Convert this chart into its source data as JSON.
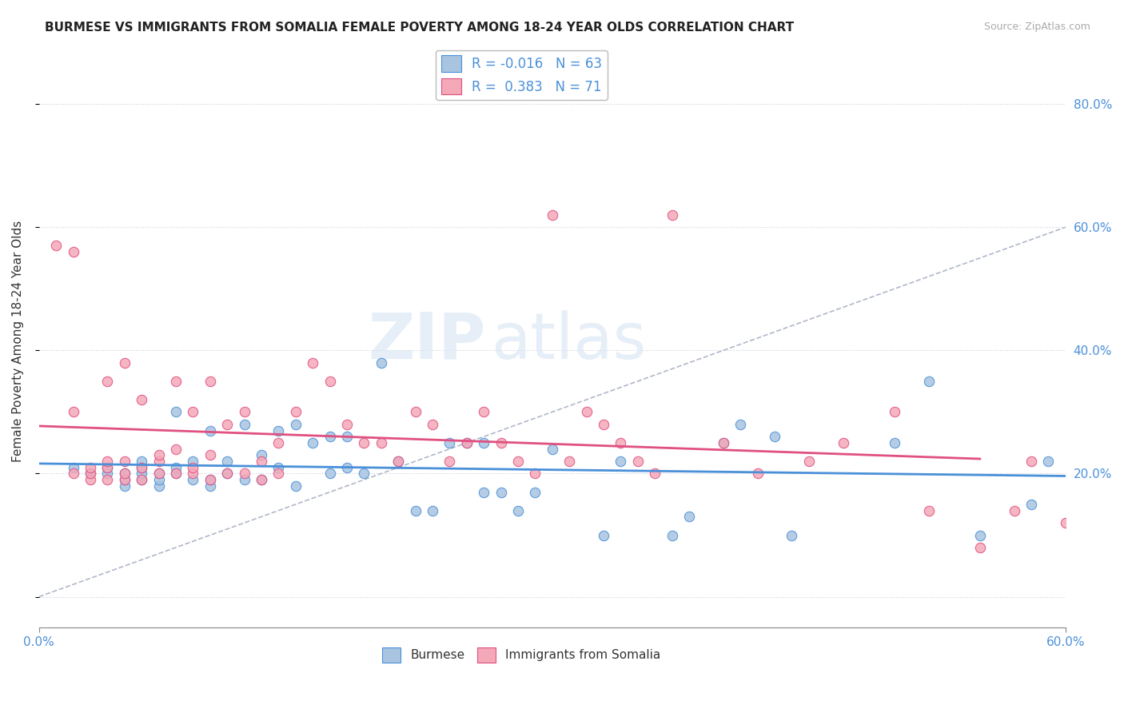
{
  "title": "BURMESE VS IMMIGRANTS FROM SOMALIA FEMALE POVERTY AMONG 18-24 YEAR OLDS CORRELATION CHART",
  "source": "Source: ZipAtlas.com",
  "ylabel": "Female Poverty Among 18-24 Year Olds",
  "yticks": [
    0.0,
    0.2,
    0.4,
    0.6,
    0.8
  ],
  "ytick_labels": [
    "",
    "20.0%",
    "40.0%",
    "60.0%",
    "80.0%"
  ],
  "xlim": [
    0.0,
    0.6
  ],
  "ylim": [
    -0.05,
    0.88
  ],
  "r_burmese": "-0.016",
  "n_burmese": "63",
  "r_somalia": "0.383",
  "n_somalia": "71",
  "color_burmese": "#a8c4e0",
  "color_somalia": "#f4a8b8",
  "color_burmese_line": "#4a90d9",
  "color_somalia_line": "#e05080",
  "color_ref_line": "#b0b8c8",
  "legend_label_burmese": "Burmese",
  "legend_label_somalia": "Immigrants from Somalia",
  "watermark_zip": "ZIP",
  "watermark_atlas": "atlas",
  "burmese_x": [
    0.02,
    0.03,
    0.04,
    0.04,
    0.05,
    0.05,
    0.05,
    0.06,
    0.06,
    0.06,
    0.06,
    0.07,
    0.07,
    0.07,
    0.08,
    0.08,
    0.08,
    0.09,
    0.09,
    0.1,
    0.1,
    0.1,
    0.11,
    0.11,
    0.12,
    0.12,
    0.13,
    0.13,
    0.14,
    0.14,
    0.15,
    0.15,
    0.16,
    0.17,
    0.17,
    0.18,
    0.18,
    0.19,
    0.2,
    0.21,
    0.22,
    0.23,
    0.24,
    0.25,
    0.26,
    0.26,
    0.27,
    0.28,
    0.29,
    0.3,
    0.33,
    0.34,
    0.37,
    0.38,
    0.4,
    0.41,
    0.43,
    0.44,
    0.5,
    0.52,
    0.55,
    0.58,
    0.59
  ],
  "burmese_y": [
    0.21,
    0.2,
    0.2,
    0.21,
    0.18,
    0.19,
    0.2,
    0.19,
    0.2,
    0.21,
    0.22,
    0.18,
    0.19,
    0.2,
    0.2,
    0.21,
    0.3,
    0.19,
    0.22,
    0.18,
    0.19,
    0.27,
    0.2,
    0.22,
    0.19,
    0.28,
    0.19,
    0.23,
    0.21,
    0.27,
    0.18,
    0.28,
    0.25,
    0.2,
    0.26,
    0.21,
    0.26,
    0.2,
    0.38,
    0.22,
    0.14,
    0.14,
    0.25,
    0.25,
    0.17,
    0.25,
    0.17,
    0.14,
    0.17,
    0.24,
    0.1,
    0.22,
    0.1,
    0.13,
    0.25,
    0.28,
    0.26,
    0.1,
    0.25,
    0.35,
    0.1,
    0.15,
    0.22
  ],
  "somalia_x": [
    0.01,
    0.02,
    0.02,
    0.02,
    0.03,
    0.03,
    0.03,
    0.04,
    0.04,
    0.04,
    0.04,
    0.05,
    0.05,
    0.05,
    0.05,
    0.06,
    0.06,
    0.06,
    0.07,
    0.07,
    0.07,
    0.08,
    0.08,
    0.08,
    0.09,
    0.09,
    0.09,
    0.1,
    0.1,
    0.1,
    0.11,
    0.11,
    0.12,
    0.12,
    0.13,
    0.13,
    0.14,
    0.14,
    0.15,
    0.16,
    0.17,
    0.18,
    0.19,
    0.2,
    0.21,
    0.22,
    0.23,
    0.24,
    0.25,
    0.26,
    0.27,
    0.28,
    0.29,
    0.3,
    0.31,
    0.32,
    0.33,
    0.34,
    0.35,
    0.36,
    0.37,
    0.4,
    0.42,
    0.45,
    0.47,
    0.5,
    0.52,
    0.55,
    0.57,
    0.58,
    0.6
  ],
  "somalia_y": [
    0.57,
    0.56,
    0.3,
    0.2,
    0.19,
    0.2,
    0.21,
    0.19,
    0.21,
    0.22,
    0.35,
    0.19,
    0.2,
    0.22,
    0.38,
    0.19,
    0.21,
    0.32,
    0.2,
    0.22,
    0.23,
    0.2,
    0.24,
    0.35,
    0.2,
    0.21,
    0.3,
    0.19,
    0.23,
    0.35,
    0.2,
    0.28,
    0.2,
    0.3,
    0.19,
    0.22,
    0.2,
    0.25,
    0.3,
    0.38,
    0.35,
    0.28,
    0.25,
    0.25,
    0.22,
    0.3,
    0.28,
    0.22,
    0.25,
    0.3,
    0.25,
    0.22,
    0.2,
    0.62,
    0.22,
    0.3,
    0.28,
    0.25,
    0.22,
    0.2,
    0.62,
    0.25,
    0.2,
    0.22,
    0.25,
    0.3,
    0.14,
    0.08,
    0.14,
    0.22,
    0.12
  ]
}
